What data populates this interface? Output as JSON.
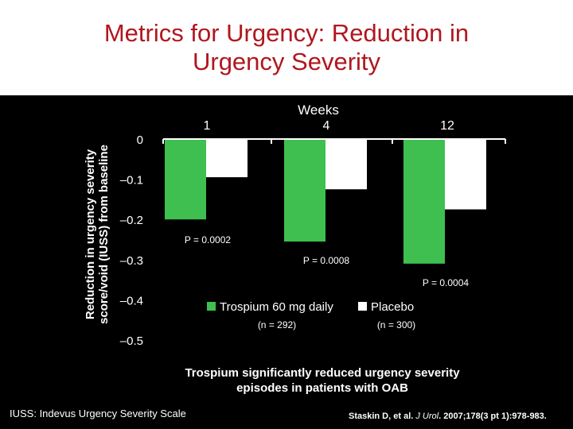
{
  "title_line1": "Metrics for Urgency: Reduction in",
  "title_line2": "Urgency Severity",
  "conclusion_line1": "Trospium significantly reduced urgency severity",
  "conclusion_line2": "episodes in patients with OAB",
  "footnote": "IUSS: Indevus Urgency Severity Scale",
  "citation": {
    "authors": "Staskin D, et al. ",
    "journal": "J Urol",
    "details": ". 2007;178(3 pt 1):978-983."
  },
  "colors": {
    "trospium": "#3fbf4f",
    "placebo": "#ffffff",
    "title": "#b0171f"
  },
  "chart_data": {
    "type": "bar",
    "title": "",
    "xlabel": "Weeks",
    "ylabel": "Reduction in urgency severity score/void (IUSS) from baseline",
    "categories": [
      "1",
      "4",
      "12"
    ],
    "ylim": [
      -0.5,
      0
    ],
    "yticks": [
      "0",
      "–0.1",
      "–0.2",
      "–0.3",
      "–0.4",
      "–0.5"
    ],
    "ytick_values": [
      0,
      -0.1,
      -0.2,
      -0.3,
      -0.4,
      -0.5
    ],
    "series": [
      {
        "name": "Trospium 60 mg daily",
        "n_label": "(n = 292)",
        "color": "#3fbf4f",
        "values": [
          -0.2,
          -0.255,
          -0.31
        ]
      },
      {
        "name": "Placebo",
        "n_label": "(n = 300)",
        "color": "#ffffff",
        "values": [
          -0.095,
          -0.125,
          -0.175
        ]
      }
    ],
    "annotations": [
      "P = 0.0002",
      "P = 0.0008",
      "P = 0.0004"
    ]
  }
}
